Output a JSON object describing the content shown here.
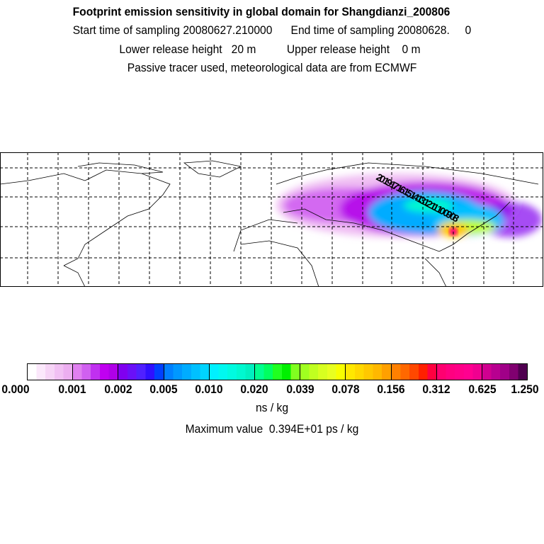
{
  "header": {
    "title": "Footprint emission sensitivity in global domain for Shangdianzi_200806",
    "sampling": "Start time of sampling 20080627.210000      End time of sampling 20080628.     0",
    "release": "Lower release height   20 m          Upper release height    0 m",
    "tracer": "Passive tracer used, meteorological data are from ECMWF"
  },
  "colorbar": {
    "ticks": [
      "0.000",
      "0.001",
      "0.002",
      "0.005",
      "0.010",
      "0.020",
      "0.039",
      "0.078",
      "0.156",
      "0.312",
      "0.625",
      "1.250"
    ],
    "segments": [
      [
        "#ffffff",
        "#fbe8fb",
        "#f6d4f6",
        "#f1c0f3",
        "#ecaef0"
      ],
      [
        "#e080f0",
        "#d060f0",
        "#c030f0",
        "#c000f0",
        "#b000e8"
      ],
      [
        "#8000f0",
        "#6a10f8",
        "#5020ff",
        "#3010ff",
        "#0040ff"
      ],
      [
        "#0080ff",
        "#0098ff",
        "#00acff",
        "#00c0ff",
        "#00d4ff"
      ],
      [
        "#00f0ff",
        "#00f8f0",
        "#00fae0",
        "#00f8d0",
        "#00f0c0"
      ],
      [
        "#00ff90",
        "#00ff60",
        "#20ff20",
        "#00f000",
        "#80ff20"
      ],
      [
        "#a0ff20",
        "#c0ff20",
        "#d8ff20",
        "#e8ff20",
        "#f8ff00"
      ],
      [
        "#ffe800",
        "#ffd800",
        "#ffc800",
        "#ffb800",
        "#ffa000"
      ],
      [
        "#ff8000",
        "#ff6800",
        "#ff4800",
        "#ff2000",
        "#ff0040"
      ],
      [
        "#ff0070",
        "#ff0080",
        "#ff0088",
        "#ff0090",
        "#f00090"
      ],
      [
        "#d00090",
        "#b80090",
        "#a00088",
        "#800070",
        "#500050"
      ]
    ],
    "unit": "ns / kg",
    "max_label": "Maximum value  0.394E+01 ps / kg"
  },
  "map": {
    "release_labels": "20 19 17 16 15 14 13 12 11 10 09 08"
  }
}
